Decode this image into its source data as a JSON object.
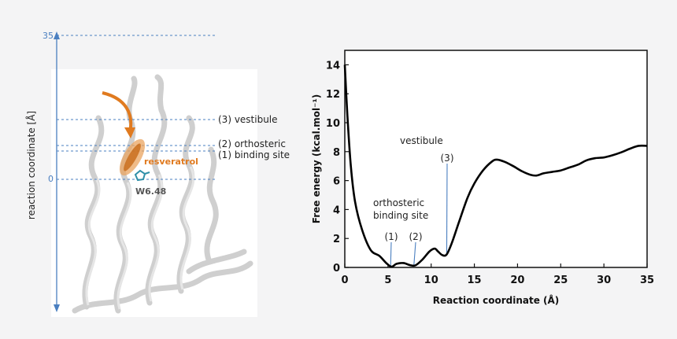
{
  "left_panel": {
    "axis_label": "reaction coordinate [Å]",
    "tick_top": "35",
    "tick_zero": "0",
    "ligand_label": "resveratrol",
    "residue_label": "W6.48",
    "site_labels": [
      "(3) vestibule",
      "(2) orthosteric",
      "(1) binding site"
    ],
    "colors": {
      "axis": "#4a7fc0",
      "ligand": "#e07a1f",
      "protein": "#d8d8d8"
    }
  },
  "chart_data": {
    "type": "line",
    "xlabel": "Reaction coordinate (Å)",
    "ylabel": "Free energy (kcal.mol⁻¹)",
    "xlim": [
      0,
      35
    ],
    "ylim": [
      0,
      15
    ],
    "xticks": [
      0,
      5,
      10,
      15,
      20,
      25,
      30,
      35
    ],
    "yticks": [
      0,
      2,
      4,
      6,
      8,
      10,
      12,
      14
    ],
    "series": [
      {
        "x": [
          0,
          0.3,
          0.7,
          1.2,
          2,
          3,
          4,
          4.8,
          5.4,
          6,
          6.8,
          7.6,
          8.2,
          9,
          9.8,
          10.4,
          10.8,
          11.3,
          11.8,
          12.4,
          13.2,
          14.2,
          15,
          16,
          17,
          17.6,
          18.5,
          19.5,
          20.5,
          21.5,
          22.2,
          23,
          24,
          25,
          26,
          27,
          28,
          29,
          30,
          31,
          32,
          33,
          34,
          35
        ],
        "y": [
          14,
          10.5,
          7,
          4.5,
          2.6,
          1.2,
          0.8,
          0.3,
          0.05,
          0.25,
          0.3,
          0.15,
          0.15,
          0.55,
          1.1,
          1.3,
          1.1,
          0.85,
          0.9,
          1.7,
          3.1,
          4.8,
          5.8,
          6.7,
          7.3,
          7.45,
          7.3,
          7,
          6.65,
          6.4,
          6.35,
          6.5,
          6.6,
          6.7,
          6.9,
          7.1,
          7.4,
          7.55,
          7.6,
          7.75,
          7.95,
          8.2,
          8.4,
          8.4
        ]
      }
    ],
    "annotations": [
      {
        "text": "(1)",
        "x": 5.3
      },
      {
        "text": "(2)",
        "x": 8.0
      },
      {
        "text": "(3)",
        "x": 11.8
      }
    ],
    "site_text": {
      "vestibule": "vestibule",
      "orthosteric_1": "orthosteric",
      "orthosteric_2": "binding site"
    },
    "grid": false,
    "legend": "none",
    "annotation_color": "#4a7fc0"
  }
}
